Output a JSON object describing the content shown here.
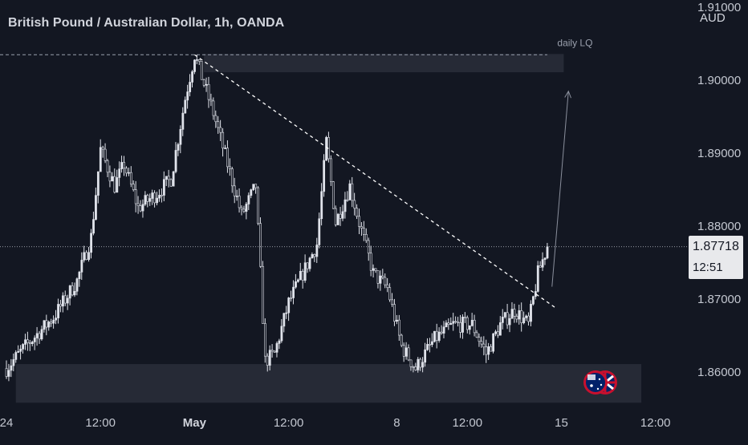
{
  "header": {
    "title": "British Pound / Australian Dollar, 1h, OANDA",
    "currency": "AUD"
  },
  "price_label": {
    "value": "1.87718",
    "countdown": "12:51"
  },
  "chart_data": {
    "type": "candlestick",
    "title": "British Pound / Australian Dollar, 1h, OANDA",
    "y_axis_unit": "AUD",
    "ylim": [
      1.8555,
      1.911
    ],
    "y_ticks": [
      "1.91000",
      "1.90000",
      "1.89000",
      "1.88000",
      "1.87000",
      "1.86000"
    ],
    "y_tick_values": [
      1.91,
      1.9,
      1.89,
      1.88,
      1.87,
      1.86
    ],
    "x_ticks": [
      "24",
      "12:00",
      "May",
      "12:00",
      "8",
      "12:00",
      "15",
      "12:00"
    ],
    "x_tick_index": [
      0,
      40,
      80,
      120,
      166,
      196,
      236,
      276
    ],
    "current_price": 1.87718,
    "candle_count": 230,
    "anchors": [
      [
        0,
        1.8605
      ],
      [
        8,
        1.8635
      ],
      [
        20,
        1.8675
      ],
      [
        30,
        1.8725
      ],
      [
        36,
        1.8785
      ],
      [
        40,
        1.8905
      ],
      [
        46,
        1.8855
      ],
      [
        50,
        1.8885
      ],
      [
        56,
        1.8825
      ],
      [
        64,
        1.8845
      ],
      [
        70,
        1.8865
      ],
      [
        76,
        1.8975
      ],
      [
        80,
        1.9035
      ],
      [
        84,
        1.8995
      ],
      [
        88,
        1.8955
      ],
      [
        94,
        1.8885
      ],
      [
        100,
        1.8815
      ],
      [
        106,
        1.8855
      ],
      [
        110,
        1.8615
      ],
      [
        114,
        1.8625
      ],
      [
        120,
        1.8695
      ],
      [
        126,
        1.8735
      ],
      [
        132,
        1.8775
      ],
      [
        136,
        1.8915
      ],
      [
        140,
        1.8805
      ],
      [
        146,
        1.8855
      ],
      [
        150,
        1.8805
      ],
      [
        156,
        1.8735
      ],
      [
        162,
        1.8715
      ],
      [
        168,
        1.8635
      ],
      [
        174,
        1.8605
      ],
      [
        182,
        1.8645
      ],
      [
        190,
        1.8665
      ],
      [
        198,
        1.8665
      ],
      [
        204,
        1.8625
      ],
      [
        210,
        1.8665
      ],
      [
        216,
        1.8685
      ],
      [
        222,
        1.8665
      ],
      [
        226,
        1.8735
      ],
      [
        230,
        1.87718
      ]
    ],
    "zones": [
      {
        "name": "daily LQ",
        "y_low": 1.9011,
        "y_high": 1.9036,
        "x_start": 84,
        "x_end": 237
      },
      {
        "name": "",
        "y_low": 1.8558,
        "y_high": 1.8611,
        "x_start": 4,
        "x_end": 270
      }
    ],
    "trendline": {
      "x1": 80,
      "y1": 1.9035,
      "x2": 234,
      "y2": 1.8687,
      "style": "dashed"
    },
    "level_line": {
      "y": 1.9035,
      "x1": 0,
      "x2": 230,
      "style": "dashed"
    },
    "projection_arrow": {
      "x1": 232,
      "y1": 1.8717,
      "x2": 239,
      "y2": 1.8985
    },
    "grid": false
  },
  "icons": {
    "currency_flags": "gbp-aud-flags-icon"
  }
}
